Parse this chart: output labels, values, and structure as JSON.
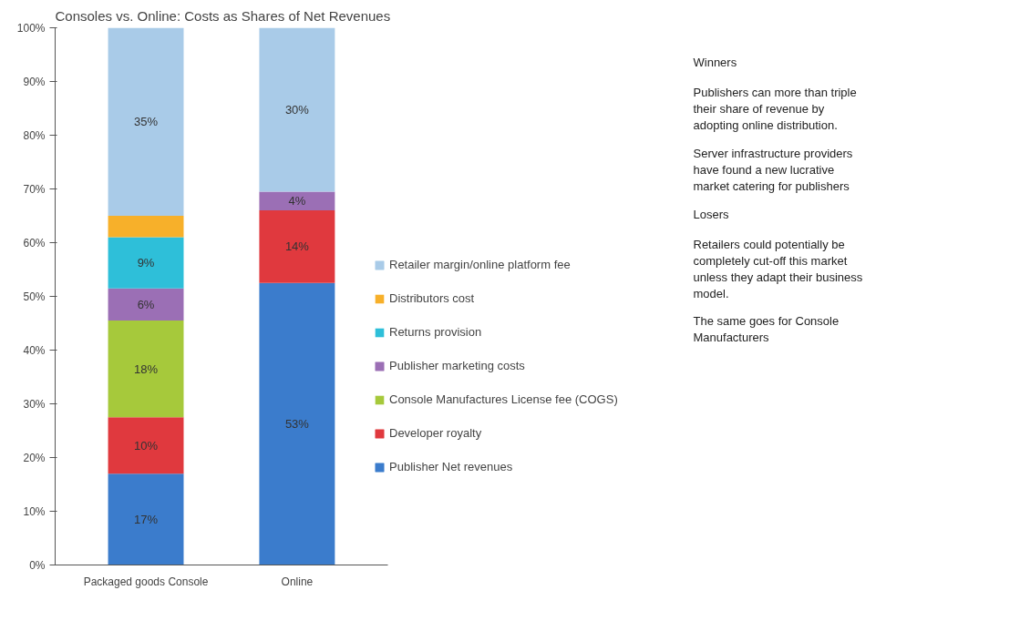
{
  "chart_data": {
    "type": "bar",
    "stacked": true,
    "title": "Consoles vs. Online: Costs as Shares of Net Revenues",
    "categories": [
      "Packaged goods Console",
      "Online"
    ],
    "series": [
      {
        "name": "Publisher Net revenues",
        "color": "#3b7ccc",
        "values": [
          17,
          52.5
        ],
        "value_labels": [
          "17%",
          "53%"
        ]
      },
      {
        "name": "Developer royalty",
        "color": "#e0393e",
        "values": [
          10.5,
          13.5
        ],
        "value_labels": [
          "10%",
          "14%"
        ]
      },
      {
        "name": "Console Manufactures License fee (COGS)",
        "color": "#a6c93b",
        "values": [
          18,
          null
        ],
        "value_labels": [
          "18%",
          null
        ]
      },
      {
        "name": "Publisher marketing costs",
        "color": "#9b6fb5",
        "values": [
          6,
          3.5
        ],
        "value_labels": [
          "6%",
          "4%"
        ]
      },
      {
        "name": "Returns provision",
        "color": "#2ebfd9",
        "values": [
          9.5,
          null
        ],
        "value_labels": [
          "9%",
          null
        ]
      },
      {
        "name": "Distributors cost",
        "color": "#f7b02a",
        "values": [
          4,
          null
        ],
        "value_labels": [
          null,
          null
        ]
      },
      {
        "name": "Retailer margin/online platform fee",
        "color": "#a9cbe8",
        "values": [
          35,
          30.5
        ],
        "value_labels": [
          "35%",
          "30%"
        ]
      }
    ],
    "ylim": [
      0,
      100
    ],
    "yticks": [
      {
        "value": 0,
        "label": "0%"
      },
      {
        "value": 10,
        "label": "10%"
      },
      {
        "value": 20,
        "label": "20%"
      },
      {
        "value": 30,
        "label": "30%"
      },
      {
        "value": 40,
        "label": "40%"
      },
      {
        "value": 50,
        "label": "50%"
      },
      {
        "value": 60,
        "label": "60%"
      },
      {
        "value": 70,
        "label": "70%"
      },
      {
        "value": 80,
        "label": "80%"
      },
      {
        "value": 90,
        "label": "90%"
      },
      {
        "value": 100,
        "label": "100%"
      }
    ],
    "grid": false,
    "legend": "right",
    "annotations": [
      "Winners",
      "Publishers can more than triple their share of revenue by adopting online distribution.",
      "Server infrastructure providers have found a new lucrative market catering for publishers",
      "Losers",
      "Retailers could potentially be completely cut-off this market unless they adapt their business model.",
      "The same goes for Console Manufacturers"
    ]
  }
}
